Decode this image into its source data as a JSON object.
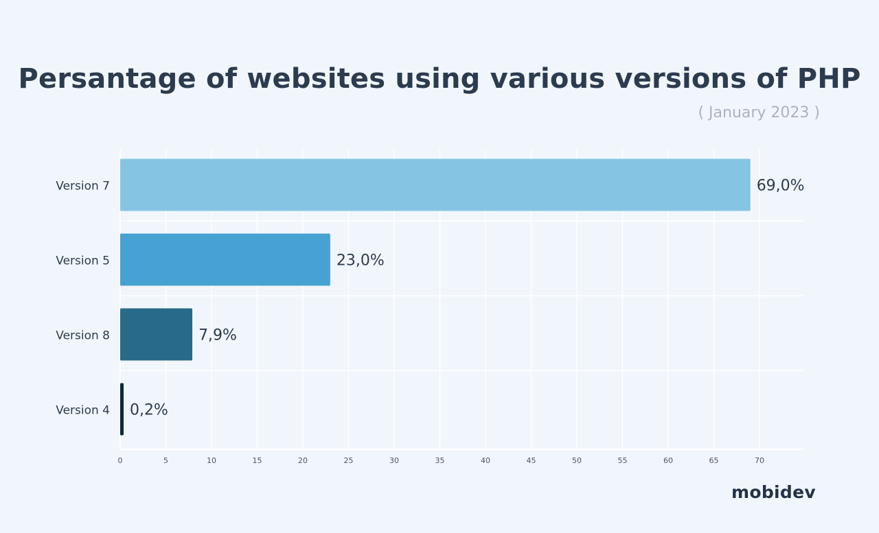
{
  "header": {
    "title": "Persantage of websites using various versions of PHP",
    "subtitle": "( January 2023 )"
  },
  "brand": {
    "logo_text": "mobidev"
  },
  "chart_data": {
    "type": "bar",
    "orientation": "horizontal",
    "title": "Persantage of websites using various versions of PHP",
    "subtitle": "( January 2023 )",
    "categories": [
      "Version 7",
      "Version 5",
      "Version 8",
      "Version 4"
    ],
    "values": [
      69.0,
      23.0,
      7.9,
      0.2
    ],
    "value_labels": [
      "69,0%",
      "23,0%",
      "7,9%",
      "0,2%"
    ],
    "bar_colors": [
      "#85c5e3",
      "#46a2d2",
      "#276a89",
      "#082a3d"
    ],
    "xlim": [
      0,
      75
    ],
    "xticks": [
      0,
      5,
      10,
      15,
      20,
      25,
      30,
      35,
      40,
      45,
      50,
      55,
      60,
      65,
      70
    ],
    "grid": true,
    "xlabel": "",
    "ylabel": ""
  }
}
